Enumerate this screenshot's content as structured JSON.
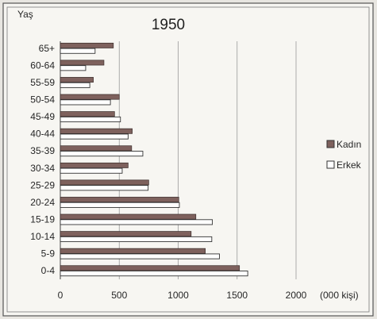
{
  "chart_data": {
    "type": "bar",
    "orientation": "horizontal",
    "title": "1950",
    "ylabel": "Yaş",
    "xlabel": "(000 kişi)",
    "xlim": [
      0,
      2000
    ],
    "xticks": [
      0,
      500,
      1000,
      1500,
      2000
    ],
    "grid": true,
    "legend_position": "right",
    "categories": [
      "0-4",
      "5-9",
      "10-14",
      "15-19",
      "20-24",
      "25-29",
      "30-34",
      "35-39",
      "40-44",
      "45-49",
      "50-54",
      "55-59",
      "60-64",
      "65+"
    ],
    "series": [
      {
        "name": "Kadın",
        "color": "#7e615d",
        "pattern": "filled",
        "values": [
          1520,
          1230,
          1110,
          1150,
          1005,
          750,
          575,
          605,
          610,
          460,
          500,
          280,
          370,
          450
        ]
      },
      {
        "name": "Erkek",
        "color": "#ffffff",
        "pattern": "outlined",
        "values": [
          1590,
          1350,
          1285,
          1290,
          1010,
          745,
          525,
          700,
          575,
          510,
          425,
          250,
          215,
          295
        ]
      }
    ]
  }
}
